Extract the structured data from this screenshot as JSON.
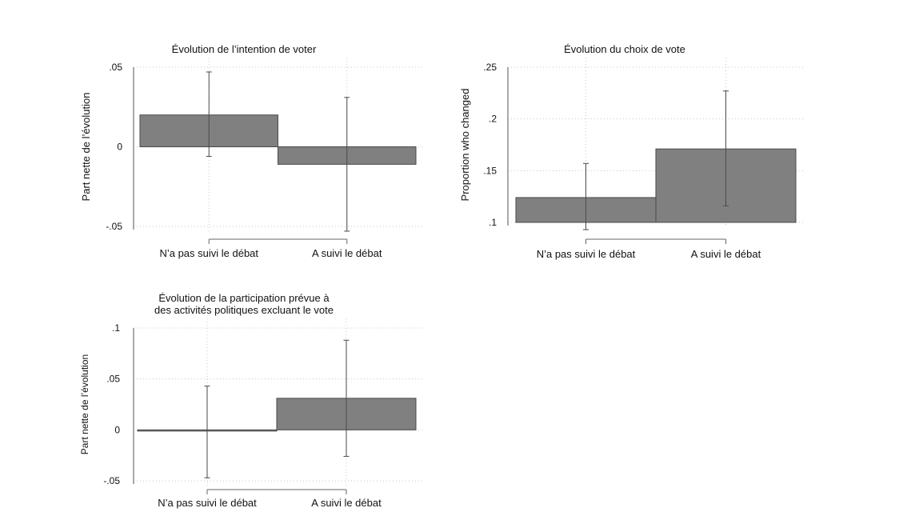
{
  "chart_data": [
    {
      "type": "bar",
      "title": [
        "Évolution de l’intention de voter"
      ],
      "ylabel": "Part nette de l’évolution",
      "categories": [
        "N’a pas suivi le débat",
        "A suivi le débat"
      ],
      "values": [
        0.02,
        -0.011
      ],
      "error_low": [
        -0.006,
        -0.053
      ],
      "error_high": [
        0.047,
        0.031
      ],
      "yticks": [
        ".05",
        "0",
        "-.05"
      ],
      "ytick_values": [
        0.05,
        0,
        -0.05
      ],
      "ylim": [
        -0.05,
        0.05
      ],
      "grid": true,
      "bar_color": "#808080"
    },
    {
      "type": "bar",
      "title": [
        "Évolution du choix de vote"
      ],
      "ylabel": "Proportion who changed",
      "categories": [
        "N’a pas suivi le débat",
        "A suivi le débat"
      ],
      "values": [
        0.124,
        0.171
      ],
      "error_low": [
        0.093,
        0.116
      ],
      "error_high": [
        0.157,
        0.227
      ],
      "yticks": [
        ".25",
        ".2",
        ".15",
        ".1"
      ],
      "ytick_values": [
        0.25,
        0.2,
        0.15,
        0.1
      ],
      "ylim": [
        0.1,
        0.25
      ],
      "grid": true,
      "bar_color": "#808080"
    },
    {
      "type": "bar",
      "title": [
        "Évolution de la participation prévue à",
        "des activités politiques excluant le vote"
      ],
      "ylabel": "Part  nette de l’évolution",
      "categories": [
        "N’a pas suivi le débat",
        "A suivi le débat"
      ],
      "values": [
        -0.001,
        0.031
      ],
      "error_low": [
        -0.047,
        -0.026
      ],
      "error_high": [
        0.043,
        0.088
      ],
      "yticks": [
        ".1",
        ".05",
        "0",
        "-.05"
      ],
      "ytick_values": [
        0.1,
        0.05,
        0,
        -0.05
      ],
      "ylim": [
        -0.05,
        0.1
      ],
      "grid": true,
      "bar_color": "#808080"
    }
  ]
}
